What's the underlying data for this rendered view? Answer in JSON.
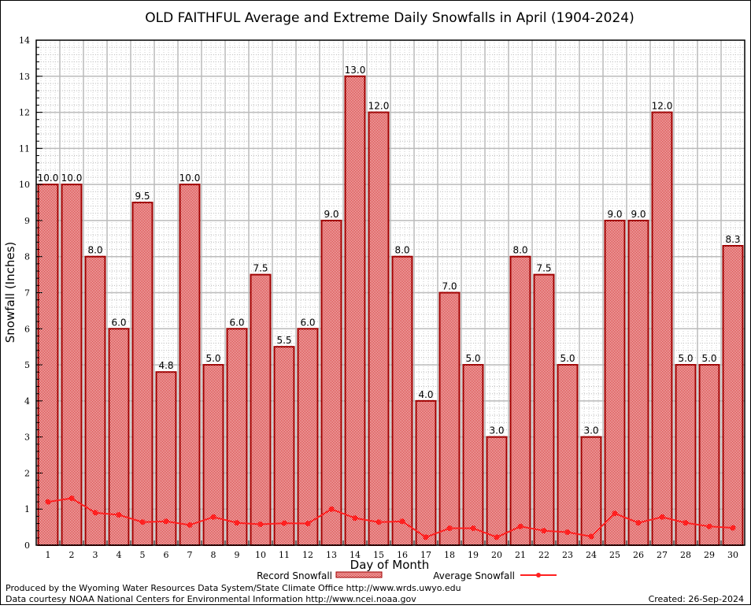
{
  "chart_data": {
    "type": "bar",
    "title": "OLD FAITHFUL Average and Extreme Daily Snowfalls in April (1904-2024)",
    "xlabel": "Day of Month",
    "ylabel": "Snowfall (Inches)",
    "ylim": [
      0,
      14
    ],
    "yticks": [
      "0",
      "1",
      "2",
      "3",
      "4",
      "5",
      "6",
      "7",
      "8",
      "9",
      "10",
      "11",
      "12",
      "13",
      "14"
    ],
    "categories": [
      "1",
      "2",
      "3",
      "4",
      "5",
      "6",
      "7",
      "8",
      "9",
      "10",
      "11",
      "12",
      "13",
      "14",
      "15",
      "16",
      "17",
      "18",
      "19",
      "20",
      "21",
      "22",
      "23",
      "24",
      "25",
      "26",
      "27",
      "28",
      "29",
      "30"
    ],
    "series": [
      {
        "name": "Record Snowfall",
        "type": "bar",
        "values": [
          10.0,
          10.0,
          8.0,
          6.0,
          9.5,
          4.8,
          10.0,
          5.0,
          6.0,
          7.5,
          5.5,
          6.0,
          9.0,
          13.0,
          12.0,
          8.0,
          4.0,
          7.0,
          5.0,
          3.0,
          8.0,
          7.5,
          5.0,
          3.0,
          9.0,
          9.0,
          12.0,
          5.0,
          5.0,
          8.3
        ],
        "labels": [
          "10.0",
          "10.0",
          "8.0",
          "6.0",
          "9.5",
          "4.8",
          "10.0",
          "5.0",
          "6.0",
          "7.5",
          "5.5",
          "6.0",
          "9.0",
          "13.0",
          "12.0",
          "8.0",
          "4.0",
          "7.0",
          "5.0",
          "3.0",
          "8.0",
          "7.5",
          "5.0",
          "3.0",
          "9.0",
          "9.0",
          "12.0",
          "5.0",
          "5.0",
          "8.3"
        ],
        "color": "#cc0000"
      },
      {
        "name": "Average Snowfall",
        "type": "line",
        "values": [
          1.2,
          1.3,
          0.9,
          0.84,
          0.64,
          0.66,
          0.56,
          0.78,
          0.62,
          0.58,
          0.61,
          0.6,
          1.0,
          0.75,
          0.64,
          0.66,
          0.22,
          0.47,
          0.47,
          0.22,
          0.52,
          0.4,
          0.36,
          0.24,
          0.88,
          0.62,
          0.78,
          0.62,
          0.52,
          0.48
        ],
        "color": "#ff2020"
      }
    ],
    "grid": true,
    "legend": "bottom"
  },
  "footer": {
    "line1": "Produced by the Wyoming Water Resources Data System/State Climate Office http://www.wrds.uwyo.edu",
    "line2": "Data courtesy NOAA National Centers for Environmental Information http://www.ncei.noaa.gov",
    "created": "Created:  26-Sep-2024"
  }
}
